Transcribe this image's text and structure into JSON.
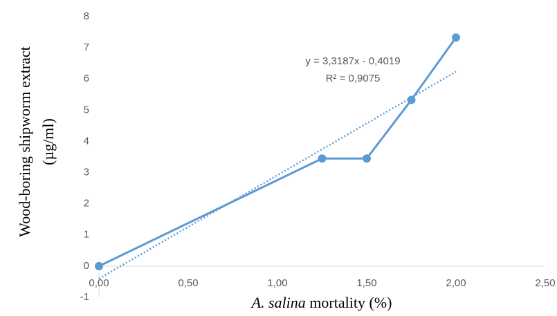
{
  "chart_data": {
    "type": "line",
    "x": [
      0,
      1.25,
      1.5,
      1.75,
      2.0
    ],
    "series": [
      {
        "color": "#5b9bd5",
        "values": [
          0,
          3.45,
          3.45,
          5.33,
          7.33
        ]
      }
    ],
    "trendline": {
      "x": [
        0,
        2
      ],
      "values": [
        -0.4019,
        6.2355
      ],
      "color": "#5b9bd5",
      "style": "dotted"
    },
    "annotations": [
      "y = 3,3187x - 0,4019",
      "R² = 0,9075"
    ],
    "xlabel": {
      "italic": "A. salina",
      "rest": "mortality (%)"
    },
    "ylabel": [
      "Wood-boring shipworm extract",
      "(µg/ml)"
    ],
    "xlim": [
      0,
      2.5
    ],
    "xticks": [
      {
        "value": 0,
        "label": "0,00"
      },
      {
        "value": 0.5,
        "label": "0,50"
      },
      {
        "value": 1,
        "label": "1,00"
      },
      {
        "value": 1.5,
        "label": "1,50"
      },
      {
        "value": 2,
        "label": "2,00"
      },
      {
        "value": 2.5,
        "label": "2,50"
      }
    ],
    "ylim": [
      -1,
      8
    ],
    "yticks": [
      -1,
      0,
      1,
      2,
      3,
      4,
      5,
      6,
      7,
      8
    ],
    "grid": false
  }
}
